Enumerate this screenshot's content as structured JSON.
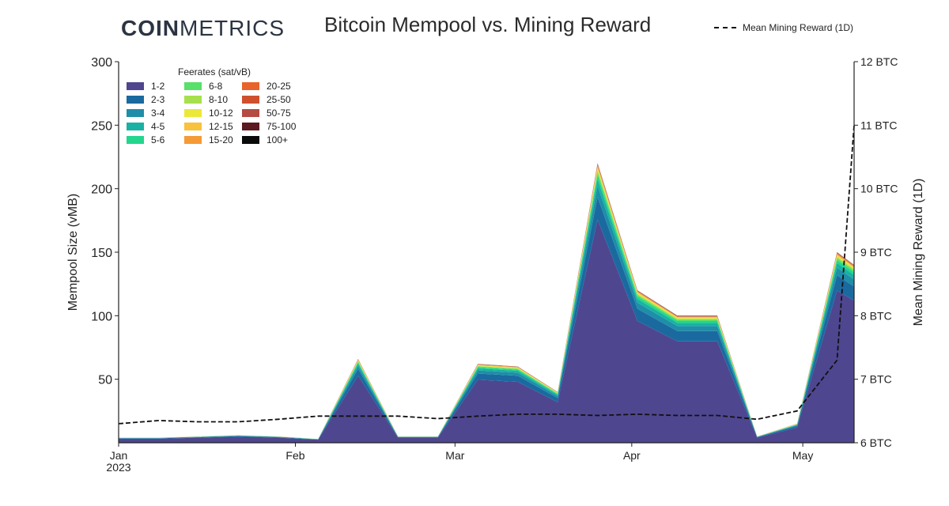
{
  "brand": {
    "logo_bold": "COIN",
    "logo_light": "METRICS"
  },
  "chart_data": {
    "type": "area",
    "title": "Bitcoin Mempool vs. Mining Reward",
    "ylabel": "Mempool Size (vMB)",
    "y2label": "Mean Mining Reward (1D)",
    "ylim": [
      0,
      300
    ],
    "y2lim": [
      6,
      12
    ],
    "y_ticks": [
      "50",
      "100",
      "150",
      "200",
      "250",
      "300"
    ],
    "y2_ticks": [
      "6 BTC",
      "7 BTC",
      "8 BTC",
      "9 BTC",
      "10 BTC",
      "11 BTC",
      "12 BTC"
    ],
    "x_ticks": [
      "Jan",
      "Feb",
      "Mar",
      "Apr",
      "May"
    ],
    "x_year_label": "2023",
    "x": [
      "2023-01-01",
      "2023-01-08",
      "2023-01-15",
      "2023-01-22",
      "2023-01-29",
      "2023-02-05",
      "2023-02-12",
      "2023-02-19",
      "2023-02-26",
      "2023-03-05",
      "2023-03-12",
      "2023-03-19",
      "2023-03-26",
      "2023-04-02",
      "2023-04-09",
      "2023-04-16",
      "2023-04-23",
      "2023-04-30",
      "2023-05-07",
      "2023-05-10"
    ],
    "legend_title": "Feerates (sat/vB)",
    "series": [
      {
        "name": "1-2",
        "color": "#4f4690"
      },
      {
        "name": "2-3",
        "color": "#1a6aa0"
      },
      {
        "name": "3-4",
        "color": "#1f8ea8"
      },
      {
        "name": "4-5",
        "color": "#19b2a2"
      },
      {
        "name": "5-6",
        "color": "#22d68e"
      },
      {
        "name": "6-8",
        "color": "#57e06a"
      },
      {
        "name": "8-10",
        "color": "#a6e04c"
      },
      {
        "name": "10-12",
        "color": "#ece83a"
      },
      {
        "name": "12-15",
        "color": "#f8c23c"
      },
      {
        "name": "15-20",
        "color": "#f59a35"
      },
      {
        "name": "20-25",
        "color": "#e8632b"
      },
      {
        "name": "25-50",
        "color": "#d0502e"
      },
      {
        "name": "50-75",
        "color": "#b54b42"
      },
      {
        "name": "75-100",
        "color": "#5a1a1f"
      },
      {
        "name": "100+",
        "color": "#0a0a0a"
      }
    ],
    "mempool_total": [
      4,
      4,
      5,
      6,
      5,
      3,
      66,
      5,
      5,
      62,
      60,
      40,
      220,
      120,
      100,
      100,
      5,
      15,
      150,
      140
    ],
    "mining_reward_series_name": "Mean Mining Reward (1D)",
    "mining_reward": [
      6.3,
      6.35,
      6.33,
      6.33,
      6.37,
      6.42,
      6.42,
      6.42,
      6.38,
      6.42,
      6.45,
      6.45,
      6.43,
      6.45,
      6.43,
      6.43,
      6.37,
      6.5,
      7.3,
      11.0
    ],
    "legend_top_position": "top-right",
    "legend_position": "top-left"
  }
}
